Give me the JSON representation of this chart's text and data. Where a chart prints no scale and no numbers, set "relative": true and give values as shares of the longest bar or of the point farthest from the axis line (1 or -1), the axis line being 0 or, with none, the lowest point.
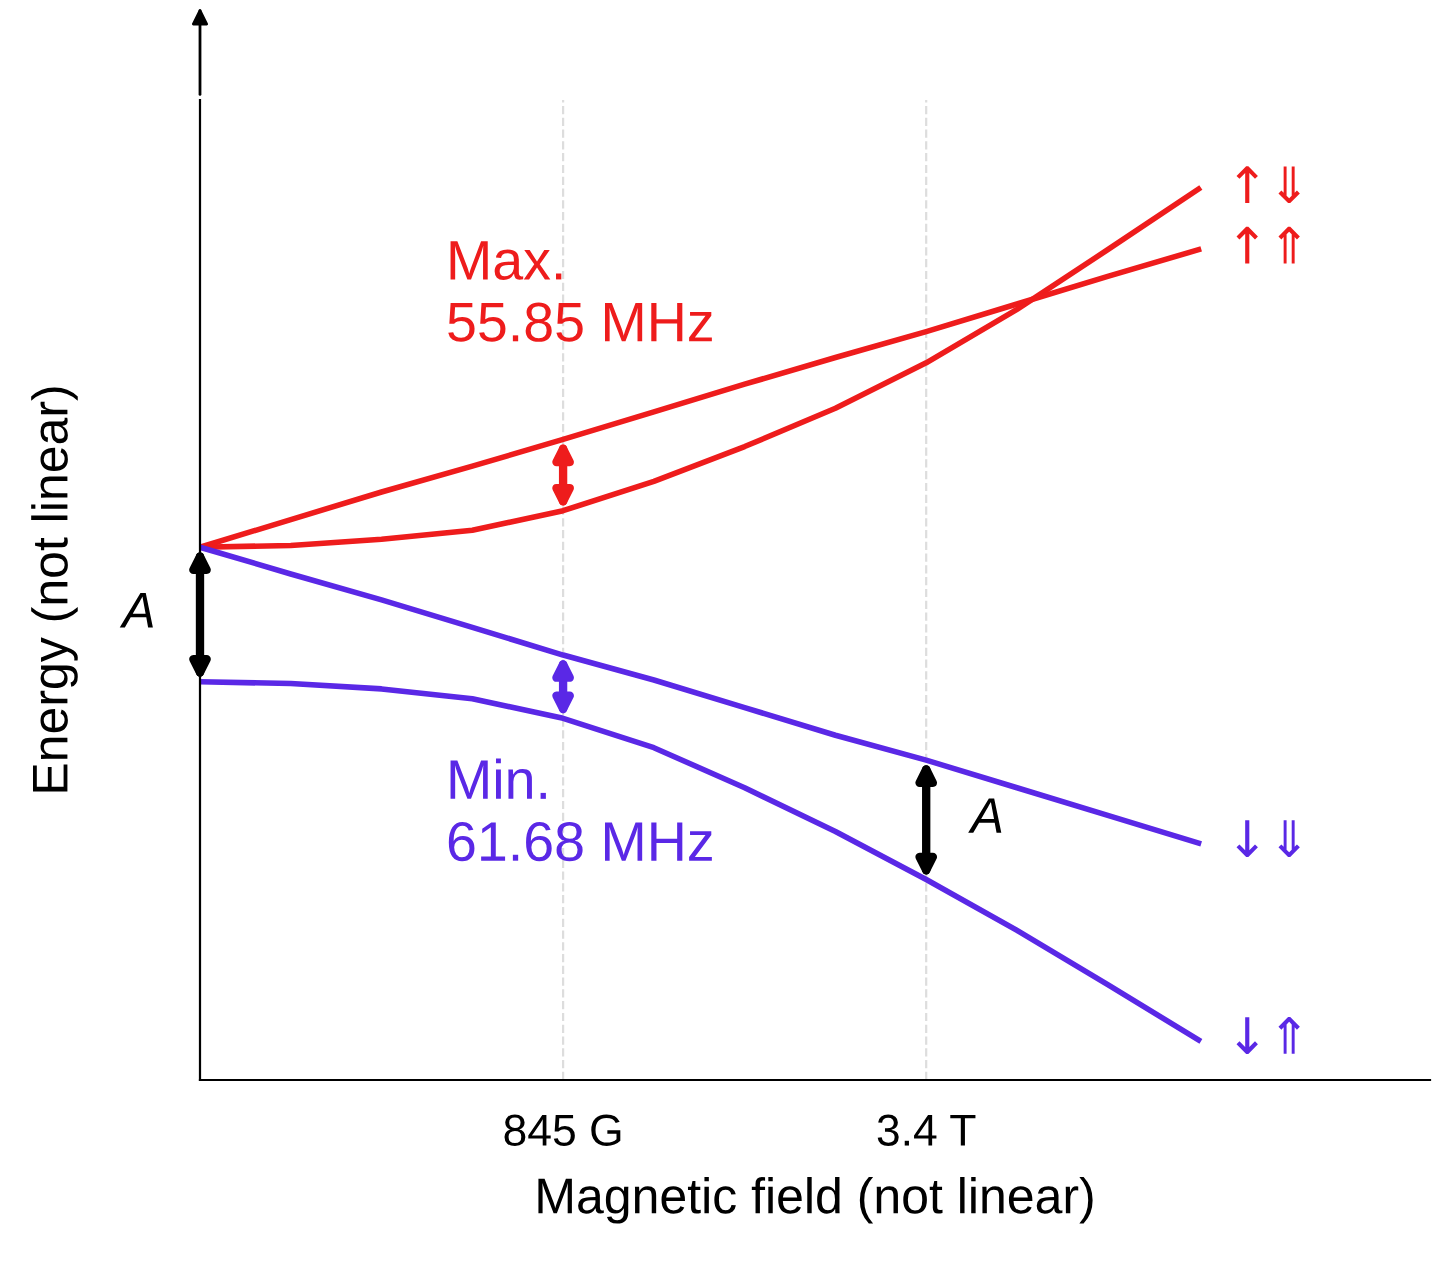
{
  "chart_data": {
    "type": "line",
    "relative": true,
    "xlabel": "Magnetic field (not linear)",
    "ylabel": "Energy (not linear)",
    "categories": [
      null,
      null,
      null,
      null,
      "845 G",
      null,
      null,
      null,
      "3.4 T",
      null,
      null,
      null
    ],
    "grid": "x",
    "legend": false,
    "marker": "none",
    "line_style": "solid",
    "series": [
      {
        "name": "↑⇓",
        "color": "#ee1c1c",
        "values": [
          0.598,
          0.6,
          0.607,
          0.617,
          0.639,
          0.672,
          0.711,
          0.754,
          0.805,
          0.865,
          0.932,
          1.0
        ]
      },
      {
        "name": "↑⇑",
        "color": "#ee1c1c",
        "values": [
          0.598,
          0.629,
          0.66,
          0.689,
          0.719,
          0.75,
          0.781,
          0.811,
          0.84,
          0.871,
          0.902,
          0.932
        ]
      },
      {
        "name": "↓⇓",
        "color": "#5a28e6",
        "values": [
          0.598,
          0.568,
          0.539,
          0.508,
          0.477,
          0.449,
          0.418,
          0.387,
          0.359,
          0.328,
          0.297,
          0.266
        ]
      },
      {
        "name": "↓⇑",
        "color": "#5a28e6",
        "values": [
          0.447,
          0.445,
          0.439,
          0.428,
          0.406,
          0.373,
          0.328,
          0.279,
          0.225,
          0.168,
          0.107,
          0.045
        ]
      }
    ],
    "annotations": [
      "Max.\n55.85 MHz",
      "Min.\n61.68 MHz",
      "A",
      "A"
    ]
  }
}
